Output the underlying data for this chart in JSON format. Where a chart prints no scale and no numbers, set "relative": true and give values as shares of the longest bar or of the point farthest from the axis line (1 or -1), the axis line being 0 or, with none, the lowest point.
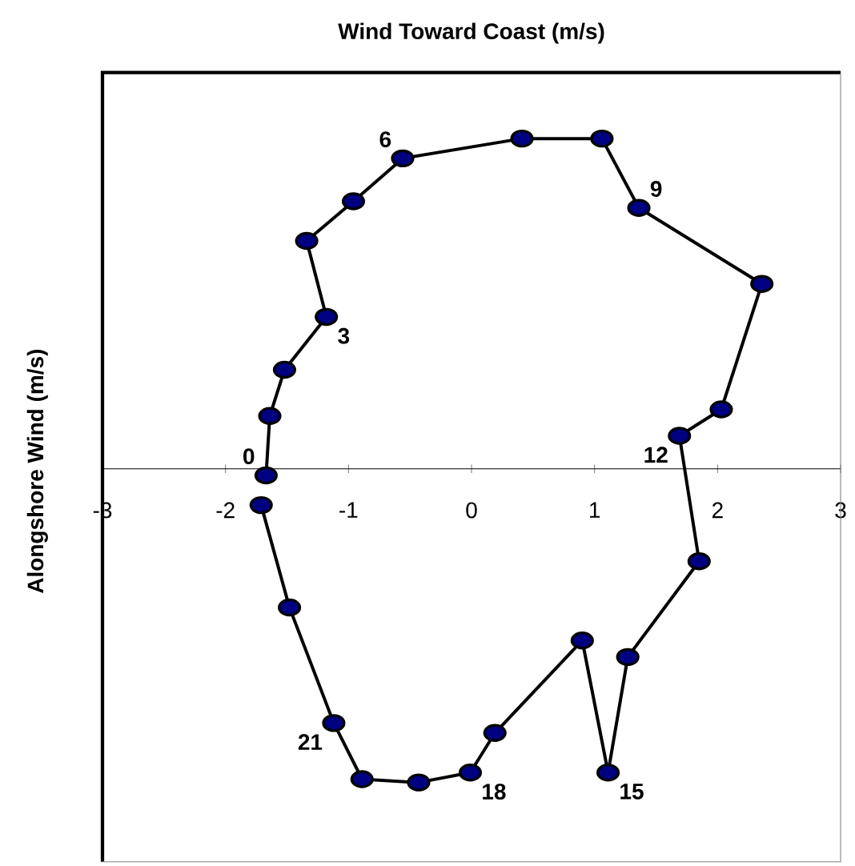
{
  "chart_data": {
    "type": "line",
    "title": "Wind Toward Coast (m/s)",
    "ylabel": "Alongshore Wind (m/s)",
    "relative": true,
    "marker": "circle",
    "xlim": [
      -3,
      3
    ],
    "xticks": [
      -3,
      -2,
      -1,
      0,
      1,
      2,
      3
    ],
    "series": [
      {
        "color": "#000080",
        "x": [
          -1.67,
          -1.64,
          -1.52,
          -1.18,
          -1.34,
          -0.96,
          -0.56,
          0.41,
          1.06,
          1.36,
          2.36,
          2.03,
          1.69,
          1.85,
          1.27,
          1.11,
          0.9,
          0.19,
          -0.01,
          -0.43,
          -0.89,
          -1.12,
          -1.48,
          -1.71
        ],
        "values": [
          -0.02,
          0.16,
          0.3,
          0.46,
          0.69,
          0.81,
          0.94,
          1.0,
          1.0,
          0.79,
          0.56,
          0.18,
          0.1,
          -0.28,
          -0.57,
          -0.92,
          -0.52,
          -0.8,
          -0.92,
          -0.95,
          -0.94,
          -0.77,
          -0.42,
          -0.11
        ]
      }
    ],
    "annotations": [
      {
        "text": "0",
        "x": -1.67,
        "y": -0.02
      },
      {
        "text": "3",
        "x": -1.18,
        "y": 0.46
      },
      {
        "text": "6",
        "x": -0.56,
        "y": 0.94
      },
      {
        "text": "9",
        "x": 1.36,
        "y": 0.79
      },
      {
        "text": "12",
        "x": 1.69,
        "y": 0.1
      },
      {
        "text": "15",
        "x": 1.11,
        "y": -0.92
      },
      {
        "text": "18",
        "x": -0.01,
        "y": -0.92
      },
      {
        "text": "21",
        "x": -1.12,
        "y": -0.77
      }
    ]
  }
}
